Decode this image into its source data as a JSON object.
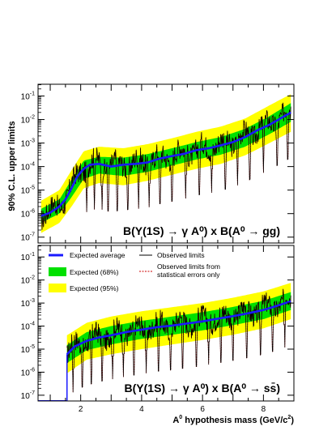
{
  "chart_data": {
    "type": "line",
    "y_axis_label": "90% C.L. upper limits",
    "x_axis_label": "A⁰ hypothesis mass (GeV/c²)",
    "x_range": [
      0.6,
      9.0
    ],
    "x_ticks": [
      "2",
      "4",
      "6",
      "8"
    ],
    "y_scale": "log",
    "legend_placement": "top-left of lower panel",
    "legend": {
      "expected_average": "Expected average",
      "observed": "Observed limits",
      "expected_68": "Expected (68%)",
      "observed_stat": "Observed limits from statistical errors only",
      "expected_95": "Expected (95%)"
    },
    "colors": {
      "expected_average": "#1a1aff",
      "observed": "#000000",
      "expected_68": "#00e000",
      "expected_95": "#ffff00",
      "observed_stat": "#cc0000"
    },
    "panels": [
      {
        "process": "B(Υ(1S) → γ A⁰) x B(A⁰ → gg)",
        "y_range_exp": [
          -7.25,
          -0.5
        ],
        "y_tick_exponents": [
          -7,
          -6,
          -5,
          -4,
          -3,
          -2,
          -1
        ],
        "expected_average": {
          "x": [
            0.7,
            1.0,
            1.3,
            1.5,
            1.7,
            1.9,
            2.1,
            2.3,
            2.6,
            3.0,
            3.4,
            3.8,
            4.2,
            4.6,
            5.0,
            5.4,
            5.8,
            6.2,
            6.6,
            7.0,
            7.4,
            7.8,
            8.2,
            8.6,
            8.9
          ],
          "y": [
            8e-07,
            1.1e-06,
            2e-06,
            4e-06,
            1.2e-05,
            4e-05,
            8e-05,
            0.00012,
            0.00013,
            0.0001,
            0.00012,
            0.00013,
            0.00015,
            0.00022,
            0.00028,
            0.00035,
            0.0005,
            0.0006,
            0.0008,
            0.0011,
            0.0018,
            0.0035,
            0.006,
            0.012,
            0.02
          ]
        },
        "band_68": {
          "x": [
            0.7,
            1.3,
            1.7,
            2.1,
            2.6,
            3.4,
            4.2,
            5.0,
            5.8,
            6.6,
            7.4,
            8.2,
            8.9
          ],
          "low": [
            4e-07,
            1e-06,
            5e-06,
            3e-05,
            5e-05,
            4e-05,
            6e-05,
            0.00011,
            0.0002,
            0.00032,
            0.0007,
            0.0024,
            0.008
          ],
          "high": [
            1.6e-06,
            4e-06,
            2.8e-05,
            0.00018,
            0.00026,
            0.00024,
            0.00034,
            0.0006,
            0.0011,
            0.0018,
            0.004,
            0.014,
            0.05
          ]
        },
        "band_95": {
          "x": [
            0.7,
            1.3,
            1.7,
            2.1,
            2.6,
            3.4,
            4.2,
            5.0,
            5.8,
            6.6,
            7.4,
            8.2,
            8.9
          ],
          "low": [
            1.5e-07,
            4e-07,
            2e-06,
            1.2e-05,
            2e-05,
            1.6e-05,
            2.5e-05,
            4.5e-05,
            8e-05,
            0.00013,
            0.0003,
            0.001,
            0.003
          ],
          "high": [
            3.5e-06,
            1e-05,
            7e-05,
            0.00045,
            0.0007,
            0.0006,
            0.0009,
            0.0016,
            0.003,
            0.005,
            0.011,
            0.04,
            0.12
          ]
        },
        "dips": [
          2.2,
          2.45,
          2.7,
          2.9,
          3.2,
          3.55,
          3.9,
          4.25,
          4.6,
          5.0,
          5.45,
          5.9,
          6.3,
          6.75,
          7.15,
          7.55,
          8.0,
          8.45,
          8.8
        ]
      },
      {
        "process": "B(Υ(1S) → γ A⁰) x B(A⁰ → ss̄)",
        "y_range_exp": [
          -7.25,
          -0.5
        ],
        "y_tick_exponents": [
          -7,
          -6,
          -5,
          -4,
          -3,
          -2,
          -1
        ],
        "expected_average": {
          "x": [
            1.55,
            1.8,
            2.2,
            2.6,
            3.0,
            3.5,
            4.0,
            4.5,
            5.0,
            5.5,
            6.0,
            6.5,
            7.0,
            7.5,
            8.0,
            8.5,
            8.9
          ],
          "y": [
            6e-06,
            1.3e-05,
            2.3e-05,
            3.2e-05,
            4e-05,
            5.5e-05,
            7e-05,
            9e-05,
            0.000105,
            0.00013,
            0.00016,
            0.00021,
            0.00027,
            0.00036,
            0.0005,
            0.0008,
            0.0012
          ]
        },
        "band_68": {
          "x": [
            1.55,
            2.2,
            3.0,
            4.0,
            5.0,
            6.0,
            7.0,
            8.0,
            8.9
          ],
          "low": [
            2.5e-06,
            9e-06,
            1.6e-05,
            2.8e-05,
            4.2e-05,
            6.5e-05,
            0.00011,
            0.0002,
            0.0005
          ],
          "high": [
            1.5e-05,
            5.5e-05,
            0.0001,
            0.00017,
            0.00026,
            0.0004,
            0.00068,
            0.00125,
            0.003
          ]
        },
        "band_95": {
          "x": [
            1.55,
            2.2,
            3.0,
            4.0,
            5.0,
            6.0,
            7.0,
            8.0,
            8.9
          ],
          "low": [
            9e-07,
            3.5e-06,
            6e-06,
            1e-05,
            1.6e-05,
            2.5e-05,
            4.2e-05,
            8e-05,
            0.0002
          ],
          "high": [
            4e-05,
            0.00014,
            0.00026,
            0.00044,
            0.00066,
            0.001,
            0.0017,
            0.0032,
            0.0075
          ]
        },
        "dips": [
          1.75,
          2.05,
          2.35,
          2.7,
          3.05,
          3.4,
          3.75,
          4.15,
          4.55,
          4.95,
          5.35,
          5.8,
          6.2,
          6.6,
          7.0,
          7.45,
          7.9,
          8.3,
          8.7
        ]
      }
    ]
  }
}
